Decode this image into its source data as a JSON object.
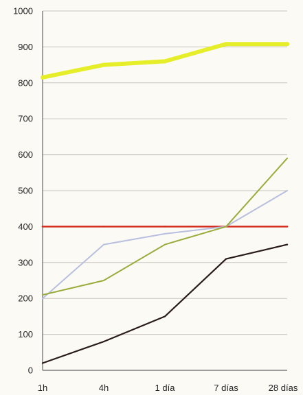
{
  "chart_data": {
    "type": "line",
    "categories": [
      "1h",
      "4h",
      "1 día",
      "7 días",
      "28 días"
    ],
    "yticks": [
      "0",
      "100",
      "200",
      "300",
      "400",
      "500",
      "600",
      "700",
      "800",
      "900",
      "1000"
    ],
    "ylim": [
      0,
      1000
    ],
    "grid": true,
    "legend": "none",
    "series": [
      {
        "color": "#e6ee2a",
        "width": 6,
        "values": [
          815,
          850,
          860,
          908,
          908
        ]
      },
      {
        "color": "#d22a1c",
        "width": 2.5,
        "values": [
          400,
          400,
          400,
          400,
          400
        ]
      },
      {
        "color": "#b8bfdf",
        "width": 2,
        "values": [
          200,
          350,
          380,
          400,
          500
        ]
      },
      {
        "color": "#9aac3c",
        "width": 2,
        "values": [
          210,
          250,
          350,
          400,
          590
        ]
      },
      {
        "color": "#2a1b1b",
        "width": 2.2,
        "values": [
          20,
          80,
          150,
          310,
          350
        ]
      }
    ]
  }
}
